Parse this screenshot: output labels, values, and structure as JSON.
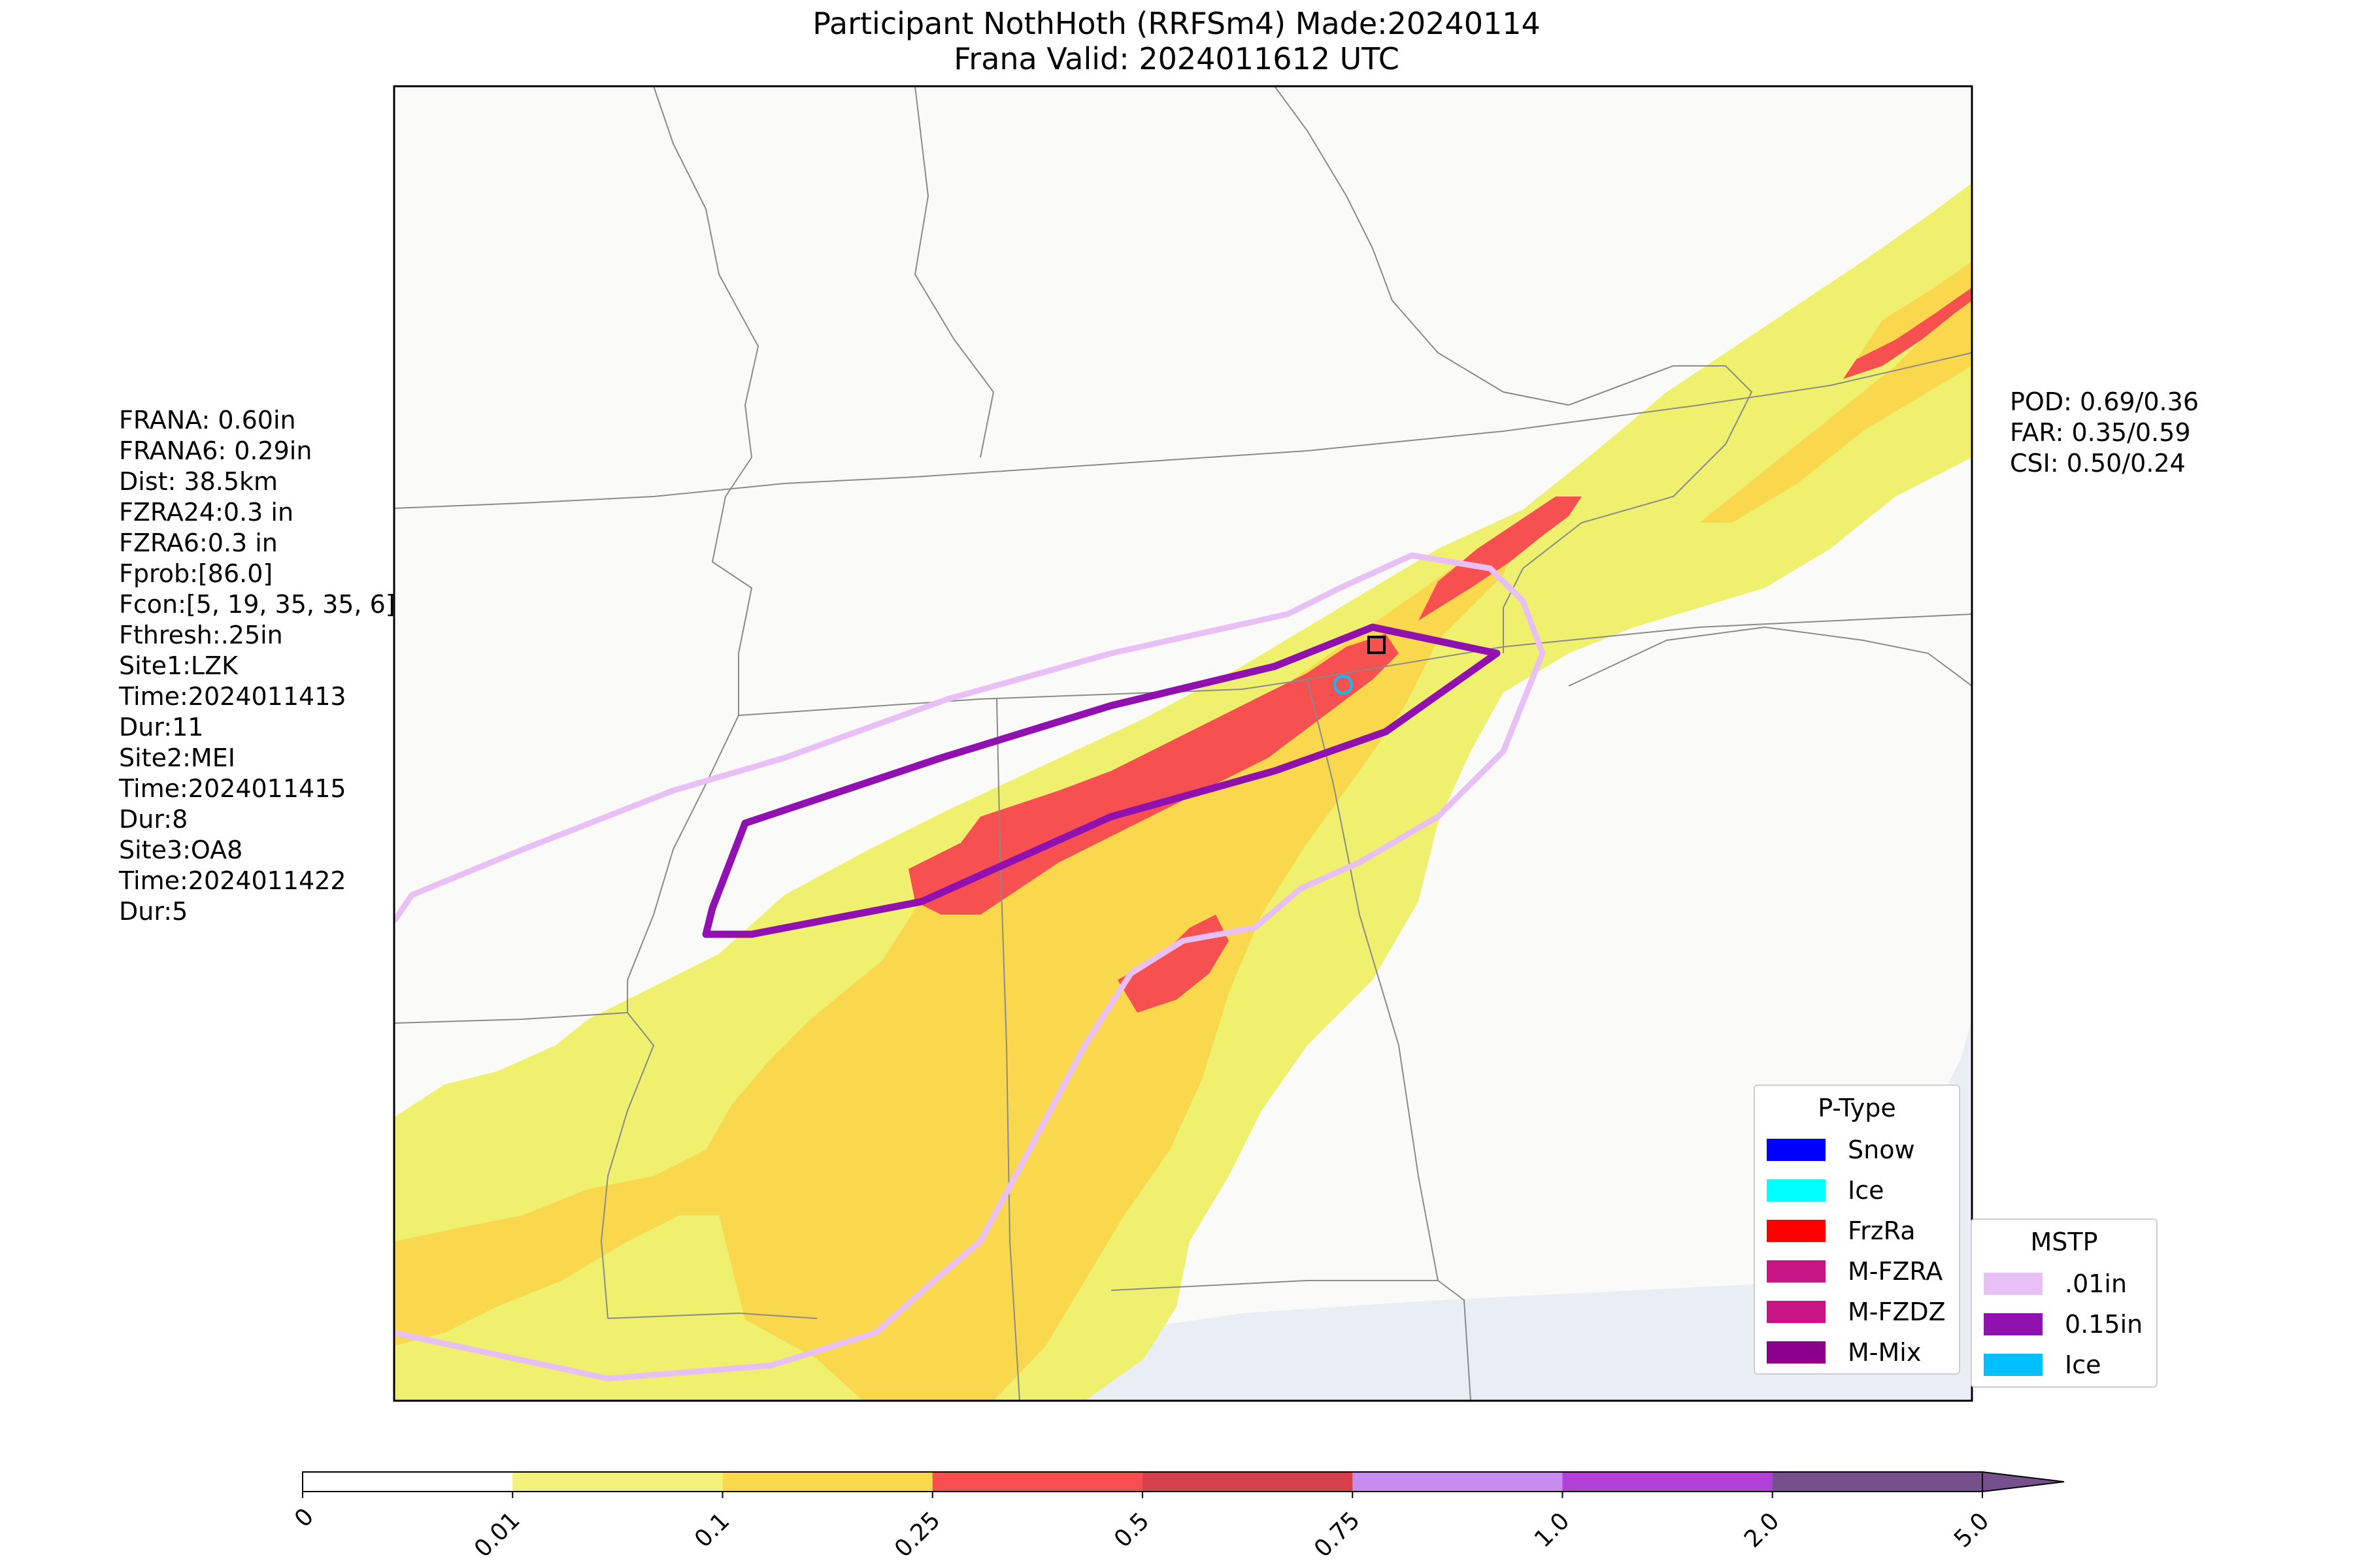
{
  "title": {
    "line1": "Participant NothHoth (RRFSm4) Made:20240114",
    "line2": "Frana Valid: 2024011612 UTC"
  },
  "left_stats": [
    "FRANA: 0.60in",
    "FRANA6: 0.29in",
    "Dist: 38.5km",
    "FZRA24:0.3 in",
    "FZRA6:0.3 in",
    "Fprob:[86.0]",
    "Fcon:[5, 19, 35, 35, 6]",
    "Fthresh:.25in",
    "Site1:LZK",
    "Time:2024011413",
    "Dur:11",
    "Site2:MEI",
    "Time:2024011415",
    "Dur:8",
    "Site3:OA8",
    "Time:2024011422",
    "Dur:5"
  ],
  "right_stats": [
    "POD: 0.69/0.36",
    "FAR: 0.35/0.59",
    "CSI: 0.50/0.24"
  ],
  "ptype_legend": {
    "title": "P-Type",
    "items": [
      {
        "label": "Snow",
        "color": "#0000ff"
      },
      {
        "label": "Ice",
        "color": "#00ffff"
      },
      {
        "label": "FrzRa",
        "color": "#ff0000"
      },
      {
        "label": "M-FZRA",
        "color": "#c71585"
      },
      {
        "label": "M-FZDZ",
        "color": "#c71585"
      },
      {
        "label": "M-Mix",
        "color": "#8b008b"
      }
    ]
  },
  "mstp_legend": {
    "title": "MSTP",
    "items": [
      {
        "label": ".01in",
        "color": "#e8c0f5"
      },
      {
        "label": "0.15in",
        "color": "#9010b0"
      },
      {
        "label": "Ice",
        "color": "#00bfff"
      }
    ]
  },
  "colorbar": {
    "ticks": [
      "0",
      "0.01",
      "0.1",
      "0.25",
      "0.5",
      "0.75",
      "1.0",
      "2.0",
      "5.0"
    ],
    "colors": [
      "#ffffff",
      "#f2f27a",
      "#fad84e",
      "#f74e4e",
      "#d6404a",
      "#c88cf0",
      "#b040d8",
      "#76508c"
    ]
  },
  "colors": {
    "map_bg": "#fafaf8",
    "water": "#e8eef6",
    "border": "#8a8a8a",
    "precip_light": "#eef06e",
    "precip_mid": "#f8d84c",
    "precip_high": "#f75050",
    "contour_01": "#e8c0f5",
    "contour_015": "#9010b0",
    "obs_ice": "#00bfff"
  }
}
